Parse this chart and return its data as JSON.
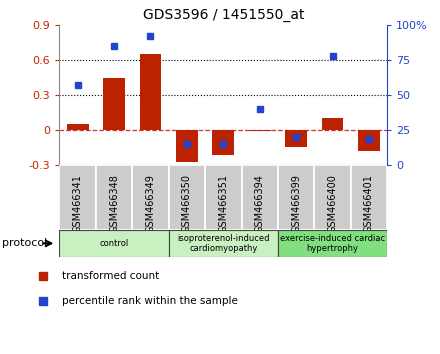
{
  "title": "GDS3596 / 1451550_at",
  "samples": [
    "GSM466341",
    "GSM466348",
    "GSM466349",
    "GSM466350",
    "GSM466351",
    "GSM466394",
    "GSM466399",
    "GSM466400",
    "GSM466401"
  ],
  "transformed_count": [
    0.05,
    0.44,
    0.65,
    -0.28,
    -0.22,
    -0.01,
    -0.15,
    0.1,
    -0.18
  ],
  "percentile_rank": [
    57,
    85,
    92,
    15,
    15,
    40,
    20,
    78,
    18
  ],
  "groups": [
    {
      "label": "control",
      "start": 0,
      "end": 3,
      "color": "#c8f0c0"
    },
    {
      "label": "isoproterenol-induced\ncardiomyopathy",
      "start": 3,
      "end": 6,
      "color": "#c8f0c0"
    },
    {
      "label": "exercise-induced cardiac\nhypertrophy",
      "start": 6,
      "end": 9,
      "color": "#80e080"
    }
  ],
  "ylim_left": [
    -0.3,
    0.9
  ],
  "ylim_right": [
    0,
    100
  ],
  "yticks_left": [
    -0.3,
    0.0,
    0.3,
    0.6,
    0.9
  ],
  "yticks_right": [
    0,
    25,
    50,
    75,
    100
  ],
  "bar_color": "#bb2200",
  "dot_color": "#2244cc",
  "bar_width": 0.6,
  "zero_line_color": "#cc3333",
  "bg_color": "#ffffff",
  "tick_label_color_left": "#cc2200",
  "tick_label_color_right": "#2244cc",
  "xtick_bg_color": "#cccccc",
  "protocol_label": "protocol",
  "legend_bar_label": "transformed count",
  "legend_dot_label": "percentile rank within the sample",
  "group_border_colors": [
    "#333333",
    "#333333"
  ],
  "title_fontsize": 10,
  "ytick_fontsize": 8,
  "xtick_fontsize": 7
}
